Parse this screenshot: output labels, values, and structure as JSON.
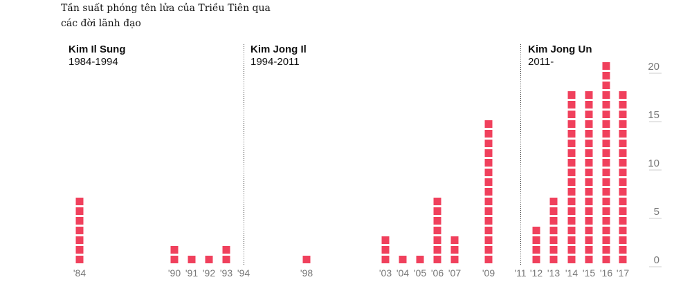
{
  "chart_data": {
    "type": "bar",
    "title_lines": [
      "Tần suất phóng tên lửa của Triều Tiên qua",
      "các đời lãnh đạo"
    ],
    "xlabel": "",
    "ylabel": "",
    "categories": [
      "'84",
      "'90",
      "'91",
      "'92",
      "'93",
      "'94",
      "'98",
      "'03",
      "'04",
      "'05",
      "'06",
      "'07",
      "'09",
      "'11",
      "'12",
      "'13",
      "'14",
      "'15",
      "'16",
      "'17"
    ],
    "values": [
      7,
      2,
      1,
      1,
      2,
      0,
      1,
      3,
      1,
      1,
      7,
      3,
      15,
      0,
      4,
      7,
      18,
      18,
      21,
      18
    ],
    "ylim": [
      0,
      21
    ],
    "yticks": [
      "0",
      "5",
      "10",
      "15",
      "20"
    ],
    "color": "#f0405c",
    "grid": false,
    "leaders": [
      {
        "name": "Kim Il Sung",
        "years": "1984-1994"
      },
      {
        "name": "Kim Jong Il",
        "years": "1994-2011"
      },
      {
        "name": "Kim Jong Un",
        "years": "2011-"
      }
    ]
  }
}
